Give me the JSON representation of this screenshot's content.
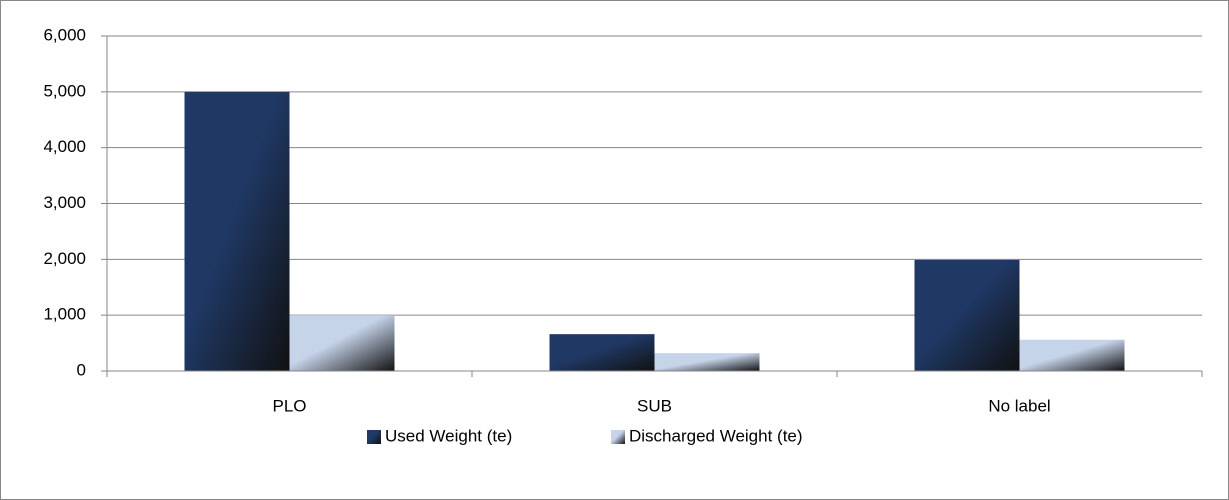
{
  "chart_data": {
    "type": "bar",
    "categories": [
      "PLO",
      "SUB",
      "No label"
    ],
    "series": [
      {
        "name": "Used Weight (te)",
        "color": "#1f3864",
        "values": [
          5000,
          660,
          1990
        ]
      },
      {
        "name": "Discharged Weight (te)",
        "color": "#c6d4ea",
        "values": [
          1000,
          320,
          560
        ]
      }
    ],
    "ylim": [
      0,
      6000
    ],
    "yticks": [
      0,
      {
        "value": 1000,
        "label": "1,000"
      },
      {
        "value": 2000,
        "label": "2,000"
      },
      {
        "value": 3000,
        "label": "3,000"
      },
      {
        "value": 4000,
        "label": "4,000"
      },
      {
        "value": 5000,
        "label": "5,000"
      },
      {
        "value": 6000,
        "label": "6,000"
      }
    ],
    "grid": true,
    "legend": "bottom"
  }
}
